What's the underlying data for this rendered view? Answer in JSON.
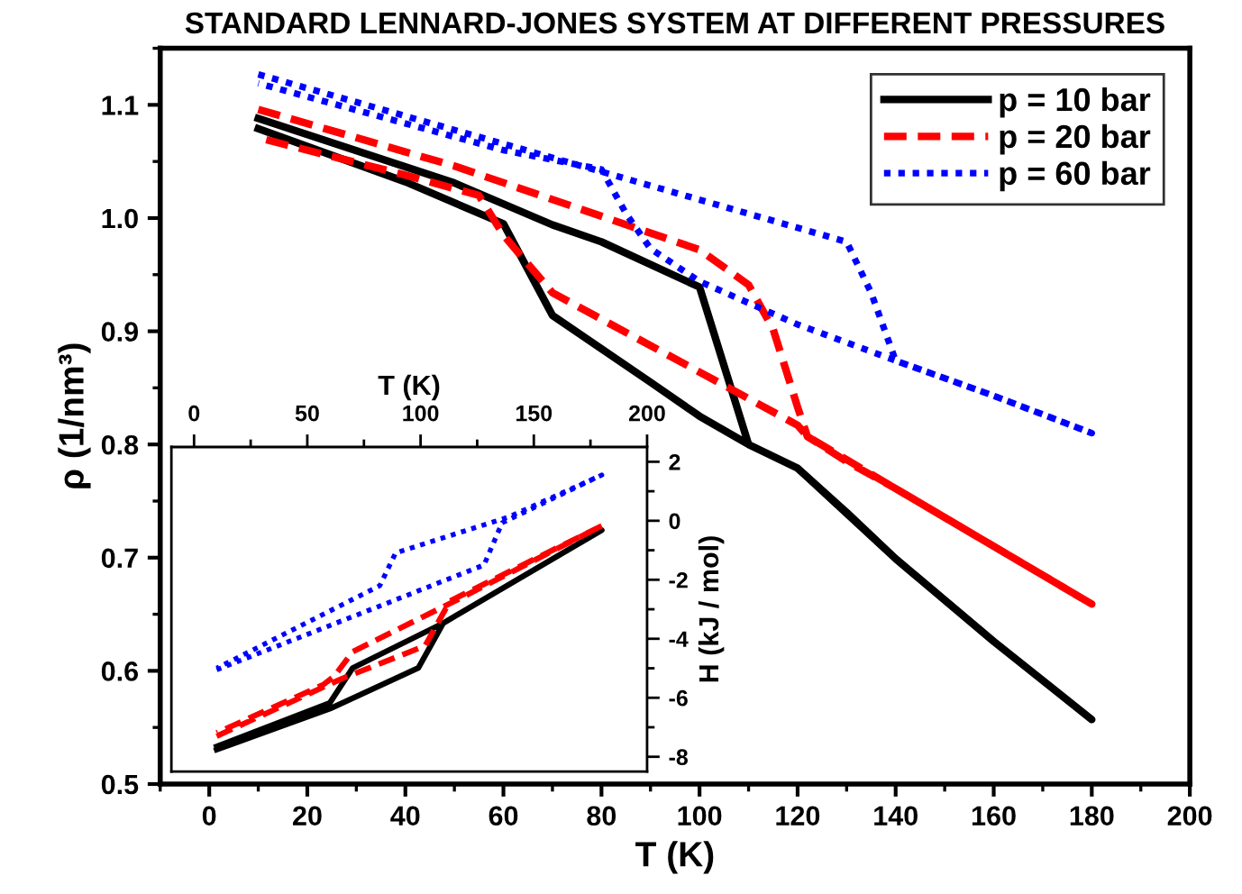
{
  "chart_data": [
    {
      "type": "line",
      "title": "STANDARD LENNARD-JONES SYSTEM AT DIFFERENT PRESSURES",
      "xlabel": "T (K)",
      "ylabel": "ρ (1/nm³)",
      "xlim": [
        -10,
        200
      ],
      "ylim": [
        0.5,
        1.15
      ],
      "xticks": [
        0,
        20,
        40,
        60,
        80,
        100,
        120,
        140,
        160,
        180,
        200
      ],
      "yticks": [
        0.5,
        0.6,
        0.7,
        0.8,
        0.9,
        {
          "value": 1.0,
          "label": "1.0"
        },
        1.1
      ],
      "grid": false,
      "legend": "top right",
      "marker": "none",
      "series": [
        {
          "name": "p = 10 bar",
          "color": "#000000",
          "line_style": "solid",
          "x": [
            10,
            50,
            70,
            80,
            100,
            110,
            120,
            130,
            140,
            160,
            180,
            160,
            140,
            120,
            110,
            100,
            90,
            70,
            60,
            40,
            10
          ],
          "values": [
            1.088,
            1.031,
            0.994,
            0.979,
            0.939,
            0.8,
            0.779,
            0.74,
            0.699,
            0.626,
            0.557,
            0.626,
            0.699,
            0.779,
            0.8,
            0.825,
            0.855,
            0.914,
            0.995,
            1.032,
            1.079
          ]
        },
        {
          "name": "p = 20 bar",
          "color": "#ff0000",
          "line_style": "dashed",
          "x": [
            10,
            50,
            100,
            110,
            115,
            120,
            122,
            130,
            140,
            180,
            140,
            122,
            120,
            100,
            70,
            60,
            55,
            40,
            10
          ],
          "values": [
            1.096,
            1.046,
            0.972,
            0.941,
            0.902,
            0.833,
            0.807,
            0.785,
            0.761,
            0.659,
            0.761,
            0.807,
            0.817,
            0.864,
            0.934,
            0.985,
            1.02,
            1.038,
            1.071
          ]
        },
        {
          "name": "p = 60 bar",
          "color": "#0000ff",
          "line_style": "dotted",
          "x": [
            10,
            80,
            130,
            135,
            140,
            160,
            180,
            160,
            140,
            120,
            100,
            90,
            85,
            80,
            60,
            10
          ],
          "values": [
            1.127,
            1.041,
            0.979,
            0.934,
            0.874,
            0.843,
            0.81,
            0.843,
            0.874,
            0.906,
            0.944,
            0.973,
            1.004,
            1.043,
            1.06,
            1.119
          ]
        }
      ]
    },
    {
      "type": "line",
      "xlabel": "T (K)",
      "ylabel": "H (kJ / mol)",
      "xlim": [
        -10,
        200
      ],
      "ylim": [
        -8.5,
        2.5
      ],
      "xticks": [
        0,
        50,
        100,
        150,
        200
      ],
      "yticks": [
        -8,
        -6,
        -4,
        -2,
        0,
        2
      ],
      "grid": false,
      "legend": false,
      "marker": "none",
      "series": [
        {
          "color": "#000000",
          "line_style": "solid",
          "x": [
            10,
            60,
            99,
            110,
            180,
            110,
            70,
            60,
            10
          ],
          "values": [
            -7.76,
            -6.37,
            -4.99,
            -3.47,
            -0.32,
            -3.47,
            -4.99,
            -6.17,
            -7.65
          ]
        },
        {
          "color": "#ff0000",
          "line_style": "dashed",
          "x": [
            10,
            65,
            102,
            113,
            180,
            118,
            70,
            62,
            57,
            10
          ],
          "values": [
            -7.3,
            -5.36,
            -4.24,
            -2.72,
            -0.17,
            -2.61,
            -4.44,
            -5.26,
            -5.56,
            -7.19
          ]
        },
        {
          "color": "#0000ff",
          "line_style": "dotted",
          "x": [
            10,
            81,
            128,
            136,
            180,
            139,
            89,
            82,
            10
          ],
          "values": [
            -5.05,
            -2.92,
            -1.5,
            -0.07,
            1.55,
            0.13,
            -1.09,
            -2.2,
            -5.0
          ]
        }
      ]
    }
  ]
}
